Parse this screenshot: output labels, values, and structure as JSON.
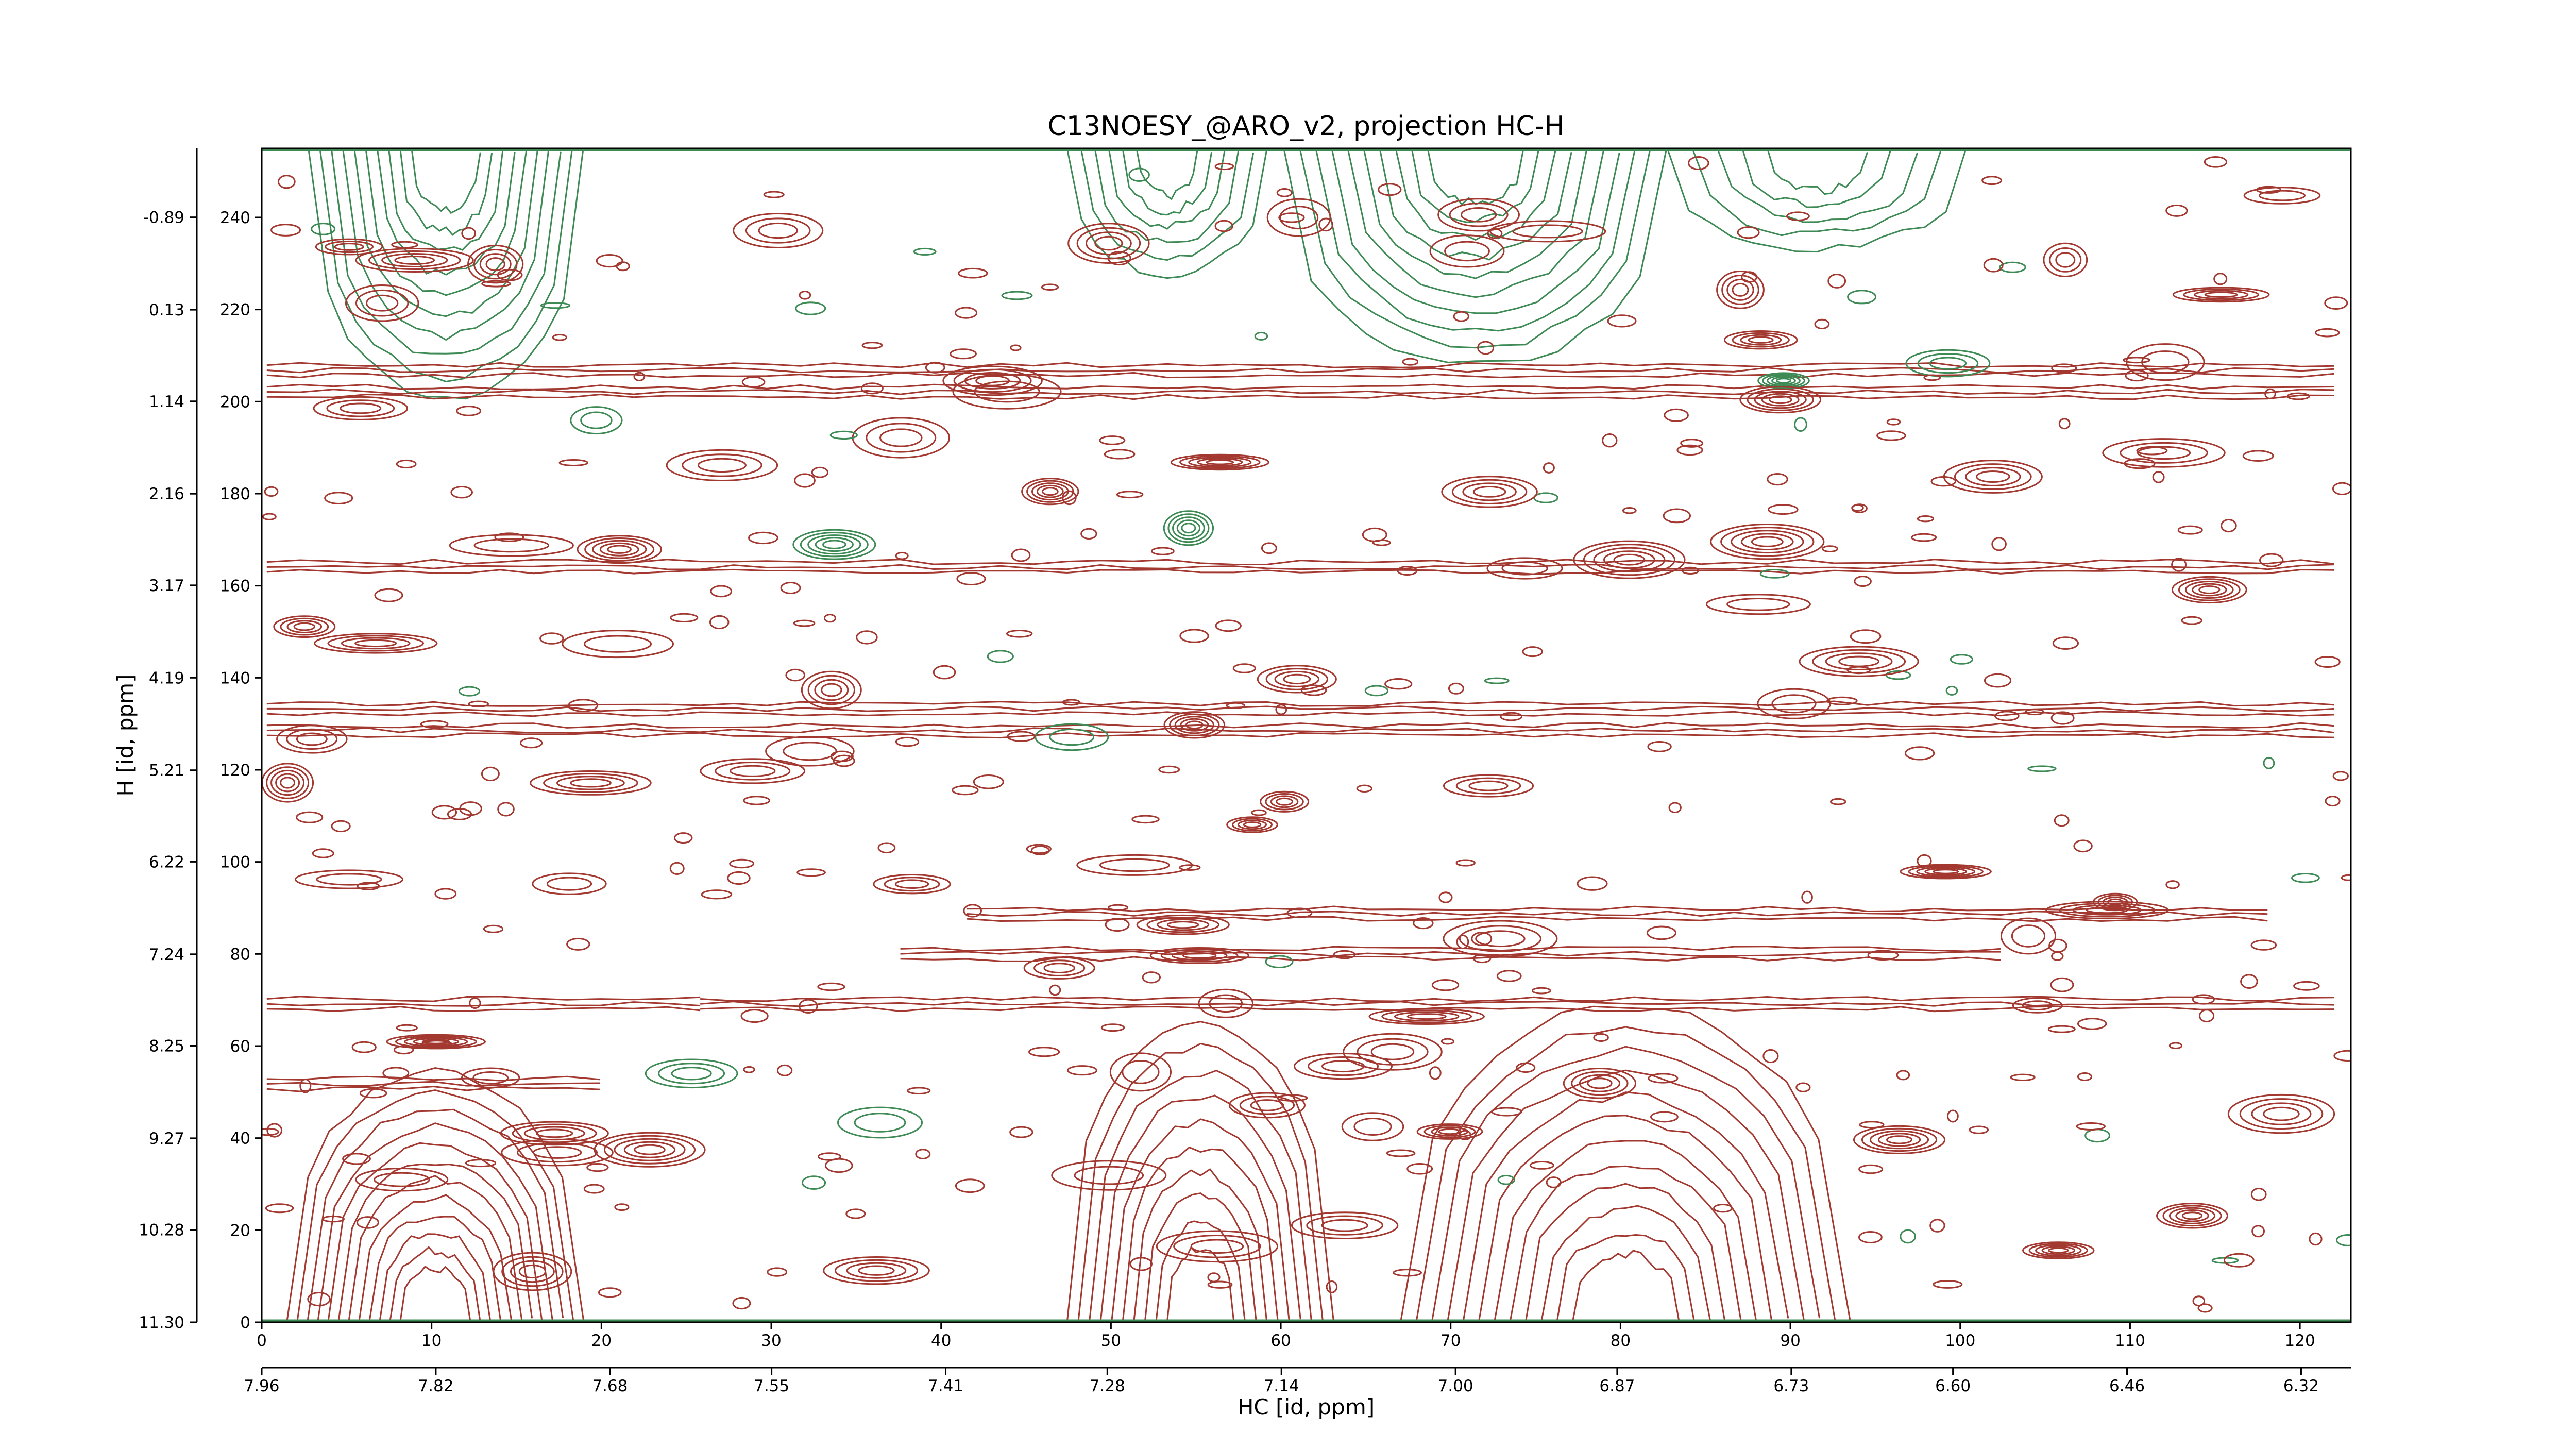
{
  "chart_data": {
    "type": "contour",
    "title": "C13NOESY_@ARO_v2, projection HC-H",
    "x_label": "HC [id, ppm]",
    "y_label": "H [id, ppm]",
    "xlim": [
      0,
      123
    ],
    "xticks": [
      0,
      10,
      20,
      30,
      40,
      50,
      60,
      70,
      80,
      90,
      100,
      110,
      120
    ],
    "ylim": [
      0,
      255
    ],
    "yticks": [
      0,
      20,
      40,
      60,
      80,
      100,
      120,
      140,
      160,
      180,
      200,
      220,
      240
    ],
    "x2lim": [
      7.96,
      6.28
    ],
    "x2ticks": [
      7.96,
      7.82,
      7.68,
      7.55,
      7.41,
      7.28,
      7.14,
      {
        "value": 7,
        "label": "7.00"
      },
      6.87,
      6.73,
      {
        "value": 6.6,
        "label": "6.60"
      },
      6.46,
      6.32
    ],
    "y2lim": [
      11.3,
      -1.65
    ],
    "y2ticks": [
      {
        "value": 11.3,
        "label": "11.30"
      },
      10.28,
      9.27,
      8.25,
      7.24,
      6.22,
      5.21,
      4.19,
      3.17,
      2.16,
      1.14,
      0.13,
      -0.89
    ],
    "positive_color": "#a2382f",
    "negative_color": "#3d8a55"
  }
}
